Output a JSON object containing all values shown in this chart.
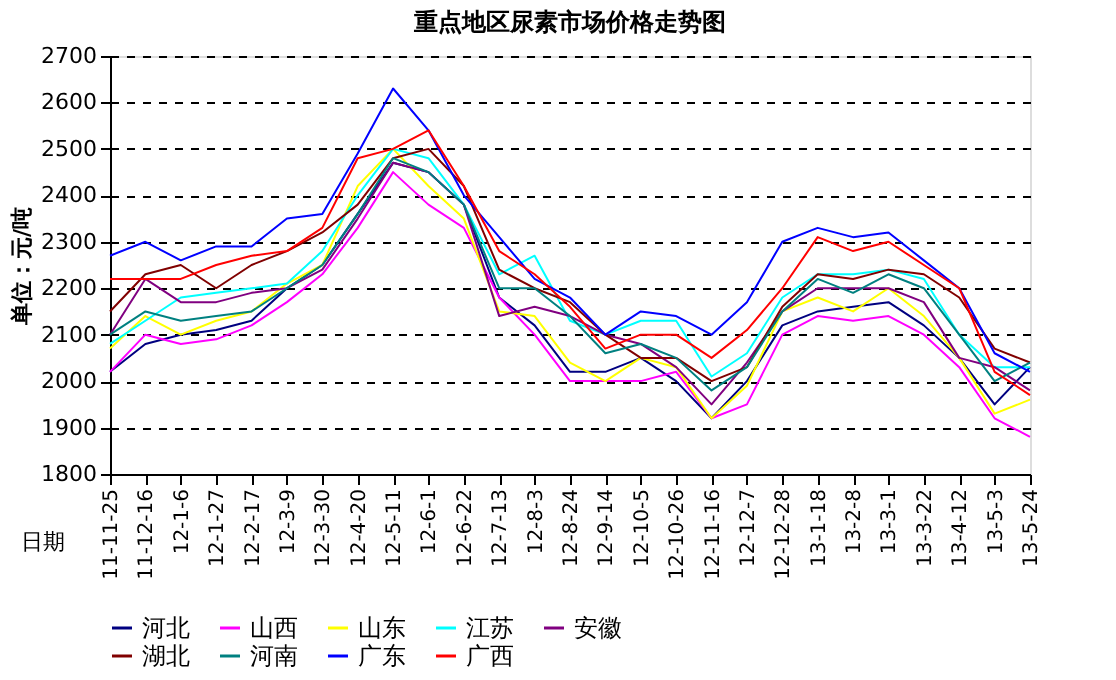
{
  "chart_data": {
    "type": "line",
    "title": "重点地区尿素市场价格走势图",
    "xlabel": "日期",
    "ylabel": "单位：元/吨",
    "categories": [
      "11-11-25",
      "11-12-16",
      "12-1-6",
      "12-1-27",
      "12-2-17",
      "12-3-9",
      "12-3-30",
      "12-4-20",
      "12-5-11",
      "12-6-1",
      "12-6-22",
      "12-7-13",
      "12-8-3",
      "12-8-24",
      "12-9-14",
      "12-10-5",
      "12-10-26",
      "12-11-16",
      "12-12-7",
      "12-12-28",
      "13-1-18",
      "13-2-8",
      "13-3-1",
      "13-3-22",
      "13-4-12",
      "13-5-3",
      "13-5-24"
    ],
    "series": [
      {
        "name": "河北",
        "color": "#000080",
        "values": [
          2020,
          2080,
          2100,
          2110,
          2130,
          2200,
          2250,
          2360,
          2470,
          2450,
          2380,
          2180,
          2120,
          2020,
          2020,
          2050,
          2000,
          1920,
          2000,
          2120,
          2150,
          2160,
          2170,
          2120,
          2050,
          1950,
          2030
        ]
      },
      {
        "name": "山西",
        "color": "#ff00ff",
        "values": [
          2020,
          2100,
          2080,
          2090,
          2120,
          2170,
          2230,
          2330,
          2450,
          2380,
          2330,
          2180,
          2100,
          2000,
          2000,
          2000,
          2020,
          1920,
          1950,
          2100,
          2140,
          2130,
          2140,
          2100,
          2030,
          1920,
          1880
        ]
      },
      {
        "name": "山东",
        "color": "#ffff00",
        "values": [
          2070,
          2140,
          2100,
          2130,
          2150,
          2210,
          2250,
          2420,
          2500,
          2420,
          2350,
          2150,
          2140,
          2040,
          2000,
          2050,
          2030,
          1920,
          1990,
          2150,
          2180,
          2150,
          2200,
          2140,
          2050,
          1930,
          1960
        ]
      },
      {
        "name": "江苏",
        "color": "#00ffff",
        "values": [
          2080,
          2130,
          2180,
          2190,
          2200,
          2210,
          2280,
          2400,
          2500,
          2480,
          2380,
          2230,
          2270,
          2130,
          2100,
          2130,
          2130,
          2010,
          2060,
          2180,
          2230,
          2230,
          2240,
          2220,
          2100,
          2030,
          2030
        ]
      },
      {
        "name": "安徽",
        "color": "#800080",
        "values": [
          2100,
          2220,
          2170,
          2170,
          2190,
          2200,
          2240,
          2350,
          2470,
          2450,
          2380,
          2140,
          2160,
          2140,
          2100,
          2080,
          2030,
          1950,
          2040,
          2150,
          2200,
          2200,
          2200,
          2170,
          2050,
          2030,
          1980
        ]
      },
      {
        "name": "湖北",
        "color": "#800000",
        "values": [
          2150,
          2230,
          2250,
          2200,
          2250,
          2280,
          2320,
          2380,
          2480,
          2500,
          2420,
          2240,
          2200,
          2170,
          2100,
          2050,
          2050,
          2000,
          2030,
          2160,
          2230,
          2220,
          2240,
          2230,
          2180,
          2070,
          2040
        ]
      },
      {
        "name": "河南",
        "color": "#008080",
        "values": [
          2100,
          2150,
          2130,
          2140,
          2150,
          2200,
          2250,
          2360,
          2480,
          2450,
          2380,
          2200,
          2200,
          2140,
          2060,
          2080,
          2050,
          1980,
          2030,
          2150,
          2220,
          2190,
          2230,
          2200,
          2100,
          2000,
          2040
        ]
      },
      {
        "name": "广东",
        "color": "#0000ff",
        "values": [
          2270,
          2300,
          2260,
          2290,
          2290,
          2350,
          2360,
          2490,
          2630,
          2540,
          2400,
          2310,
          2220,
          2180,
          2100,
          2150,
          2140,
          2100,
          2170,
          2300,
          2330,
          2310,
          2320,
          2260,
          2200,
          2060,
          2020
        ]
      },
      {
        "name": "广西",
        "color": "#ff0000",
        "values": [
          2220,
          2220,
          2220,
          2250,
          2270,
          2280,
          2330,
          2480,
          2500,
          2540,
          2420,
          2280,
          2230,
          2160,
          2070,
          2100,
          2100,
          2050,
          2110,
          2200,
          2310,
          2280,
          2300,
          2250,
          2200,
          2020,
          1970
        ]
      }
    ],
    "ylim": [
      1800,
      2700
    ],
    "yticks": [
      1800,
      1900,
      2000,
      2100,
      2200,
      2300,
      2400,
      2500,
      2600,
      2700
    ],
    "grid": "y",
    "legend": "bottom",
    "marker": "none",
    "line_style": "solid"
  }
}
